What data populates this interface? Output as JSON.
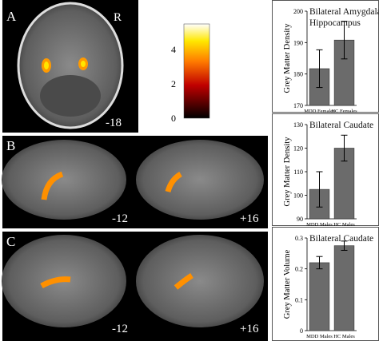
{
  "panel_labels": [
    "A",
    "B",
    "C"
  ],
  "orientation_label": "R",
  "slice_labels": [
    "-18",
    "-12",
    "+16",
    "-12",
    "+16"
  ],
  "colorbar": {
    "lim": [
      0,
      5.5
    ],
    "ticks": [
      0,
      2,
      4
    ]
  },
  "chart_data": [
    {
      "type": "bar",
      "title": "Bilateral Amygdala and Hippocampus",
      "y_label": "Grey Matter Density",
      "categories": [
        "MDD Females",
        "HC Females"
      ],
      "values": [
        181.7,
        190.8
      ],
      "errors": [
        6,
        6
      ],
      "color": "#6b6b6b",
      "ylim": [
        170,
        200
      ],
      "yticks": [
        170,
        180,
        190,
        200
      ]
    },
    {
      "type": "bar",
      "title": "Bilateral Caudate",
      "y_label": "Grey Matter Density",
      "categories": [
        "MDD Males",
        "HC Males"
      ],
      "values": [
        102.5,
        120
      ],
      "errors": [
        7.5,
        5.5
      ],
      "color": "#6b6b6b",
      "ylim": [
        90,
        130
      ],
      "yticks": [
        90,
        100,
        110,
        120,
        130
      ]
    },
    {
      "type": "bar",
      "title": "Bilateral Caudate",
      "y_label": "Grey Matter Volume",
      "categories": [
        "MDD Males",
        "HC Males"
      ],
      "values": [
        0.22,
        0.275
      ],
      "errors": [
        0.02,
        0.015
      ],
      "color": "#6b6b6b",
      "ylim": [
        0,
        0.3
      ],
      "yticks": [
        0,
        0.1,
        0.2,
        0.3
      ]
    }
  ]
}
